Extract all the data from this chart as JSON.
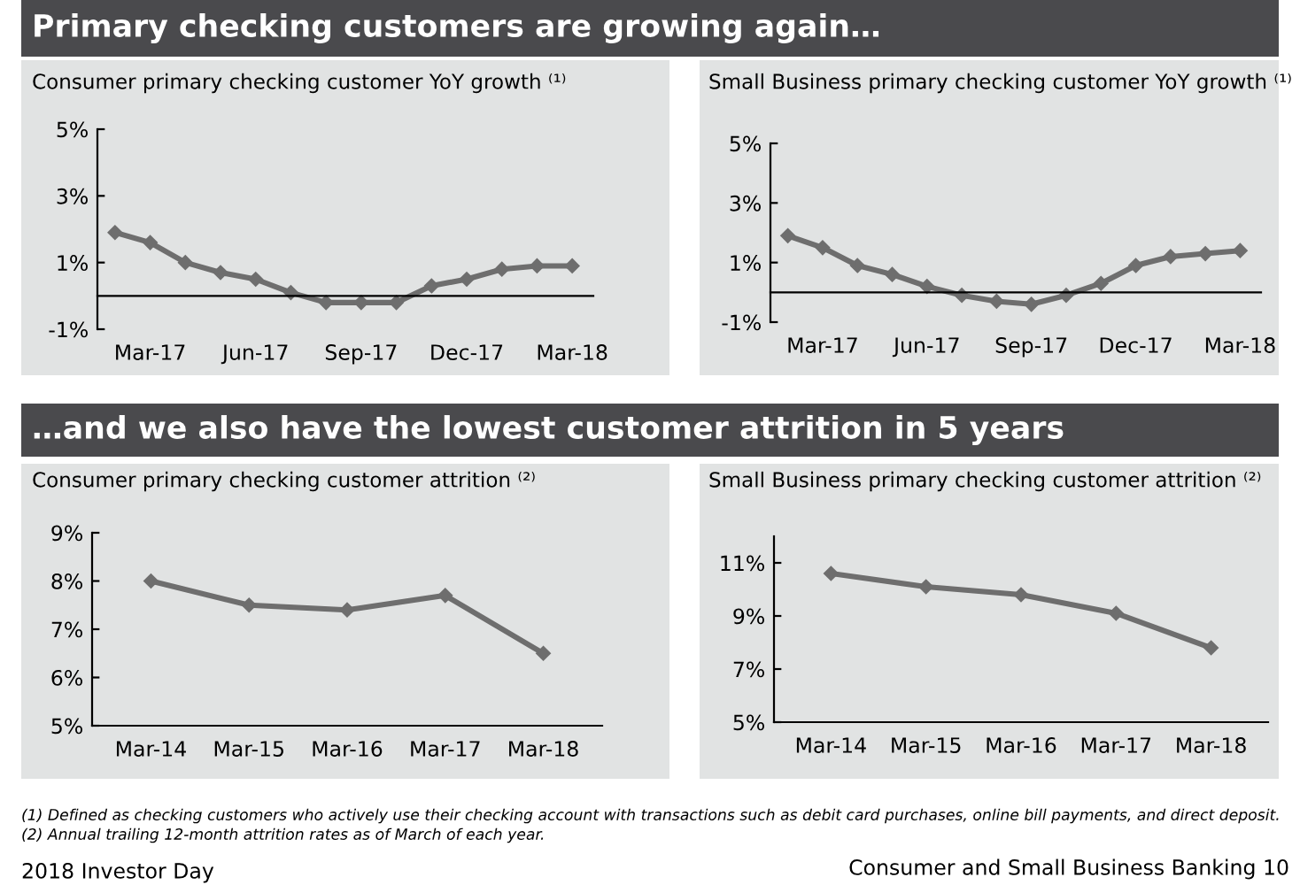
{
  "chart_data": [
    {
      "type": "line",
      "title": "Consumer primary checking customer YoY growth ⁽¹⁾",
      "annotations": [
        "Primary checking customers are growing again…"
      ],
      "categories": [
        null,
        "Mar-17",
        null,
        null,
        "Jun-17",
        null,
        null,
        "Sep-17",
        null,
        null,
        "Dec-17",
        null,
        null,
        "Mar-18"
      ],
      "series": [
        {
          "color": "#6e6e6e",
          "values": [
            1.9,
            1.6,
            1.0,
            0.7,
            0.5,
            0.1,
            -0.2,
            -0.2,
            -0.2,
            0.3,
            0.5,
            0.8,
            0.9,
            0.9
          ]
        }
      ],
      "ylim": [
        -1,
        5
      ],
      "yticks": [
        {
          "value": -1,
          "label": "-1%"
        },
        {
          "value": 1,
          "label": "1%"
        },
        {
          "value": 3,
          "label": "3%"
        },
        {
          "value": 5,
          "label": "5%"
        }
      ],
      "marker": "diamond",
      "line_style": "solid",
      "grid": false,
      "legend": false
    },
    {
      "type": "line",
      "title": "Small Business primary checking customer YoY growth ⁽¹⁾",
      "categories": [
        null,
        "Mar-17",
        null,
        null,
        "Jun-17",
        null,
        null,
        "Sep-17",
        null,
        null,
        "Dec-17",
        null,
        null,
        "Mar-18"
      ],
      "series": [
        {
          "color": "#6e6e6e",
          "values": [
            1.9,
            1.5,
            0.9,
            0.6,
            0.2,
            -0.1,
            -0.3,
            -0.4,
            -0.1,
            0.3,
            0.9,
            1.2,
            1.3,
            1.4
          ]
        }
      ],
      "ylim": [
        -1,
        5
      ],
      "yticks": [
        {
          "value": -1,
          "label": "-1%"
        },
        {
          "value": 1,
          "label": "1%"
        },
        {
          "value": 3,
          "label": "3%"
        },
        {
          "value": 5,
          "label": "5%"
        }
      ],
      "marker": "diamond",
      "line_style": "solid",
      "grid": false,
      "legend": false
    },
    {
      "type": "line",
      "title": "Consumer primary checking customer attrition ⁽²⁾",
      "annotations": [
        "…and we also have the lowest customer attrition in 5 years",
        "(1) Defined as checking customers who actively use their checking account with transactions such as debit card purchases, online bill payments, and direct deposit.",
        "(2) Annual trailing 12-month attrition rates as of March of each year."
      ],
      "categories": [
        "Mar-14",
        "Mar-15",
        "Mar-16",
        "Mar-17",
        "Mar-18"
      ],
      "series": [
        {
          "color": "#6e6e6e",
          "values": [
            8.0,
            7.5,
            7.4,
            7.7,
            6.5
          ]
        }
      ],
      "ylim": [
        5,
        9
      ],
      "yticks": [
        {
          "value": 5,
          "label": "5%"
        },
        {
          "value": 6,
          "label": "6%"
        },
        {
          "value": 7,
          "label": "7%"
        },
        {
          "value": 8,
          "label": "8%"
        },
        {
          "value": 9,
          "label": "9%"
        }
      ],
      "marker": "diamond",
      "line_style": "solid",
      "grid": false,
      "legend": false
    },
    {
      "type": "line",
      "title": "Small Business primary checking customer attrition ⁽²⁾",
      "annotations": [
        "2018 Investor Day",
        "Consumer and Small Business Banking 10"
      ],
      "categories": [
        "Mar-14",
        "Mar-15",
        "Mar-16",
        "Mar-17",
        "Mar-18"
      ],
      "series": [
        {
          "color": "#6e6e6e",
          "values": [
            10.6,
            10.1,
            9.8,
            9.1,
            7.8
          ]
        }
      ],
      "ylim": [
        5,
        12
      ],
      "yticks": [
        {
          "value": 5,
          "label": "5%"
        },
        {
          "value": 7,
          "label": "7%"
        },
        {
          "value": 9,
          "label": "9%"
        },
        {
          "value": 11,
          "label": "11%"
        }
      ],
      "marker": "diamond",
      "line_style": "solid",
      "grid": false,
      "legend": false
    }
  ]
}
